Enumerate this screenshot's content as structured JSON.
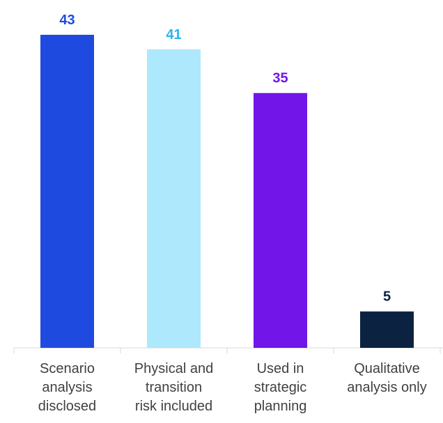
{
  "chart_data": {
    "type": "bar",
    "categories": [
      [
        "Scenario",
        "analysis",
        "disclosed"
      ],
      [
        "Physical and",
        "transition",
        "risk included"
      ],
      [
        "Used in",
        "strategic",
        "planning"
      ],
      [
        "Qualitative",
        "analysis only"
      ]
    ],
    "values": [
      43,
      41,
      35,
      5
    ],
    "colors": [
      "#1f4ae0",
      "#aee8fd",
      "#7115e8",
      "#0b2340"
    ],
    "label_colors": [
      "#1f4ae0",
      "#29b6ec",
      "#7115e8",
      "#0b2340"
    ],
    "title": "",
    "xlabel": "",
    "ylabel": "",
    "ylim": [
      0,
      43
    ],
    "grid": false,
    "legend": "none"
  }
}
